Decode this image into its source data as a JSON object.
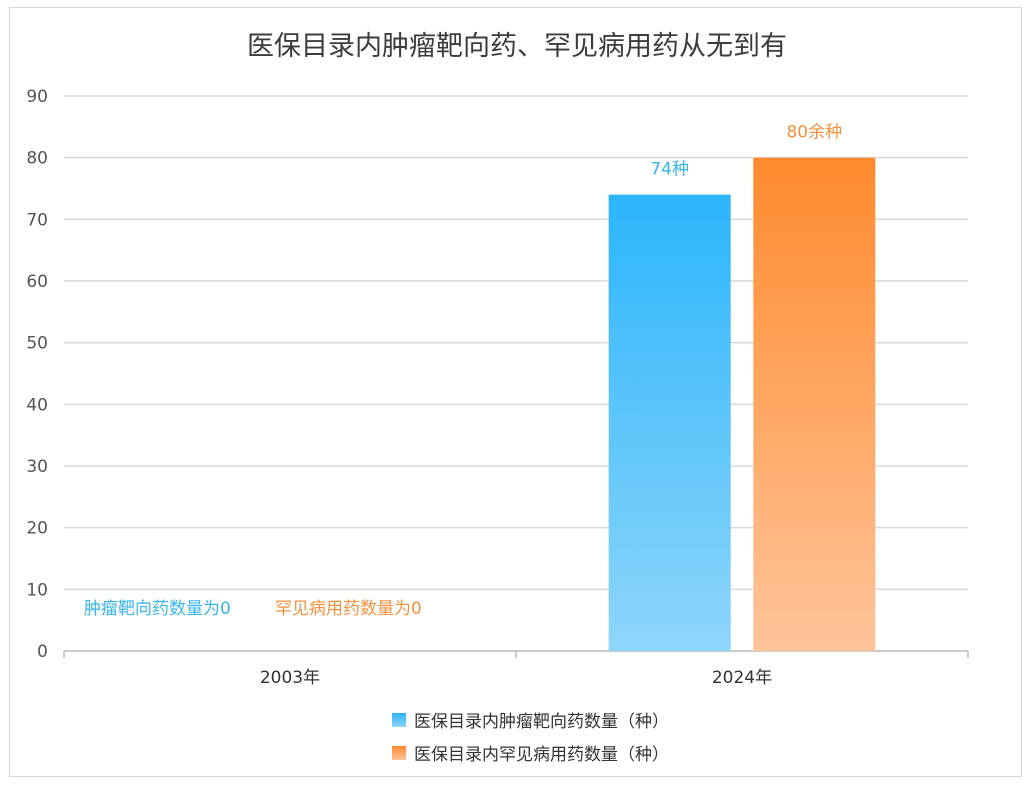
{
  "title": "医保目录内肿瘤靶向药、罕见病用药从无到有",
  "colors": {
    "blue_top": "#2bb5fb",
    "blue_bottom": "#8fd5fa",
    "orange_top": "#ff8a2e",
    "orange_bottom": "#ffc49a",
    "blue_label": "#36b6f0",
    "orange_label": "#f5923e"
  },
  "chart_data": {
    "type": "bar",
    "categories": [
      "2003年",
      "2024年"
    ],
    "series": [
      {
        "name": "医保目录内肿瘤靶向药数量（种）",
        "values": [
          0,
          74
        ],
        "labels": [
          "肿瘤靶向药数量为0",
          "74种"
        ]
      },
      {
        "name": "医保目录内罕见病用药数量（种）",
        "values": [
          0,
          80
        ],
        "labels": [
          "罕见病用药数量为0",
          "80余种"
        ]
      }
    ],
    "yticks": [
      "0",
      "10",
      "20",
      "30",
      "40",
      "50",
      "60",
      "70",
      "80",
      "90"
    ],
    "ylim": [
      0,
      90
    ],
    "grid": true,
    "legend_position": "bottom"
  }
}
